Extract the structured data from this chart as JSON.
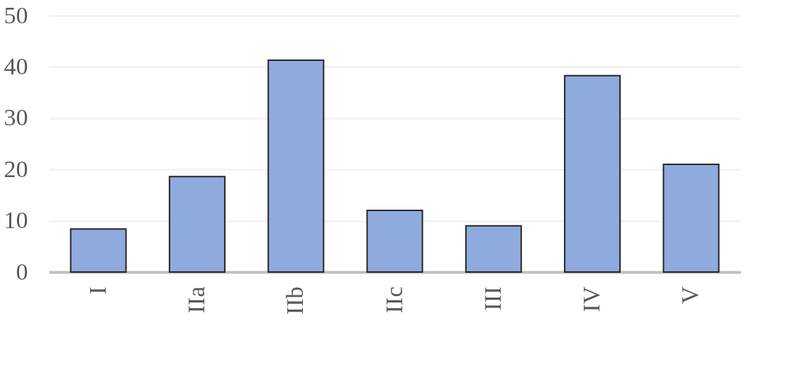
{
  "chart_data": {
    "type": "bar",
    "categories": [
      "I",
      "IIa",
      "IIb",
      "IIc",
      "III",
      "IV",
      "V"
    ],
    "values": [
      8.4,
      18.6,
      41.3,
      12.0,
      9.0,
      38.3,
      21.0
    ],
    "color": "#8faadc",
    "ylim": [
      0,
      50
    ],
    "yticks": [
      0,
      10,
      20,
      30,
      40,
      50
    ],
    "grid": "y",
    "legend": false
  }
}
